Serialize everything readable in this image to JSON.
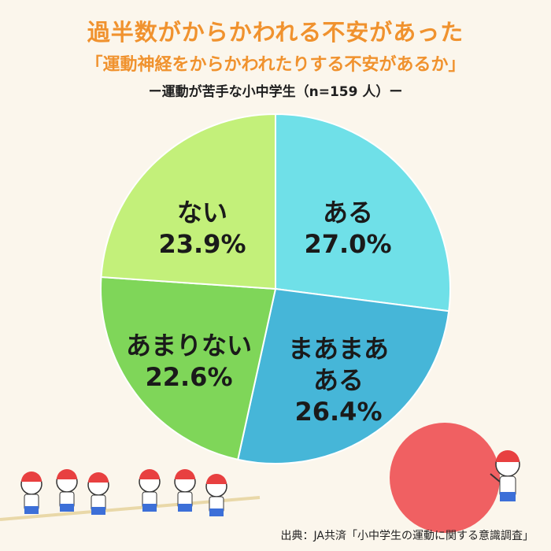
{
  "header": {
    "title": "過半数がからかわれる不安があった",
    "title2": "「運動神経をからかわれたりする不安があるか」",
    "subtitle": "ー運動が苦手な小中学生（n=159 人）ー"
  },
  "source": "出典：JA共済「小中学生の運動に関する意識調査」",
  "colors": {
    "aru": "#6fe0e8",
    "maamaa": "#46b6d8",
    "amari": "#7fd659",
    "nai": "#c3f07a",
    "title": "#f0922e",
    "ball": "#f06062"
  },
  "chart_data": {
    "type": "pie",
    "slices": [
      {
        "label": "ある",
        "value": 27.0,
        "display": "27.0%"
      },
      {
        "label": "まあまあある",
        "value": 26.4,
        "display": "26.4%"
      },
      {
        "label": "あまりない",
        "value": 22.6,
        "display": "22.6%"
      },
      {
        "label": "ない",
        "value": 23.9,
        "display": "23.9%"
      }
    ]
  },
  "illustrations": [
    "tug-of-war-children",
    "child-pushing-ball"
  ]
}
